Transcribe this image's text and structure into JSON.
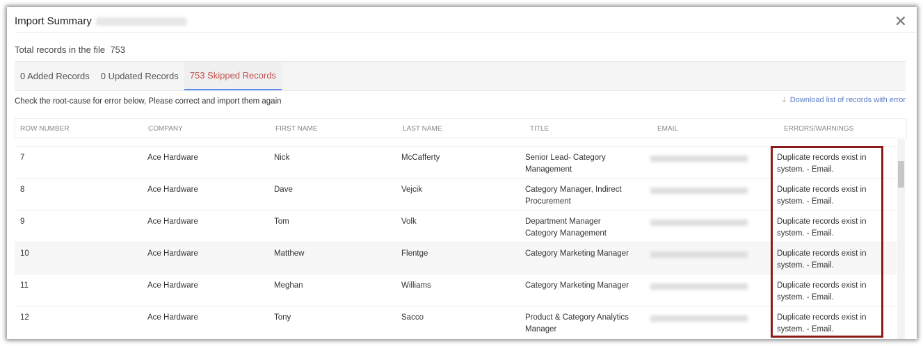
{
  "dialog": {
    "title": "Import Summary",
    "close_icon": "close-icon",
    "total_label": "Total records in the file",
    "total_value": "753"
  },
  "tabs": [
    {
      "label": "0 Added Records"
    },
    {
      "label": "0 Updated Records"
    },
    {
      "label": "753 Skipped Records",
      "active": true
    }
  ],
  "instruction": "Check the root-cause for error below, Please correct and import them again",
  "download_link": "Download list of records with error",
  "columns": [
    "ROW NUMBER",
    "COMPANY",
    "FIRST NAME",
    "LAST NAME",
    "TITLE",
    "EMAIL",
    "ERRORS/WARNINGS"
  ],
  "rows": [
    {
      "row": "7",
      "company": "Ace Hardware",
      "first": "Nick",
      "last": "McCafferty",
      "title": "Senior Lead- Category Management",
      "error": "Duplicate records exist in system. - Email."
    },
    {
      "row": "8",
      "company": "Ace Hardware",
      "first": "Dave",
      "last": "Vejcik",
      "title": "Category Manager, Indirect Procurement",
      "error": "Duplicate records exist in system. - Email."
    },
    {
      "row": "9",
      "company": "Ace Hardware",
      "first": "Tom",
      "last": "Volk",
      "title": "Department Manager Category Management",
      "error": "Duplicate records exist in system. - Email."
    },
    {
      "row": "10",
      "company": "Ace Hardware",
      "first": "Matthew",
      "last": "Flentge",
      "title": "Category Marketing Manager",
      "error": "Duplicate records exist in system. - Email."
    },
    {
      "row": "11",
      "company": "Ace Hardware",
      "first": "Meghan",
      "last": "Williams",
      "title": "Category Marketing Manager",
      "error": "Duplicate records exist in system. - Email."
    },
    {
      "row": "12",
      "company": "Ace Hardware",
      "first": "Tony",
      "last": "Sacco",
      "title": "Product & Category Analytics Manager",
      "error": "Duplicate records exist in system. - Email."
    }
  ],
  "colors": {
    "active_tab": "#c0504d",
    "tab_underline": "#5b8def",
    "highlight_box": "#8b1a1a",
    "link": "#5a7bc4"
  }
}
